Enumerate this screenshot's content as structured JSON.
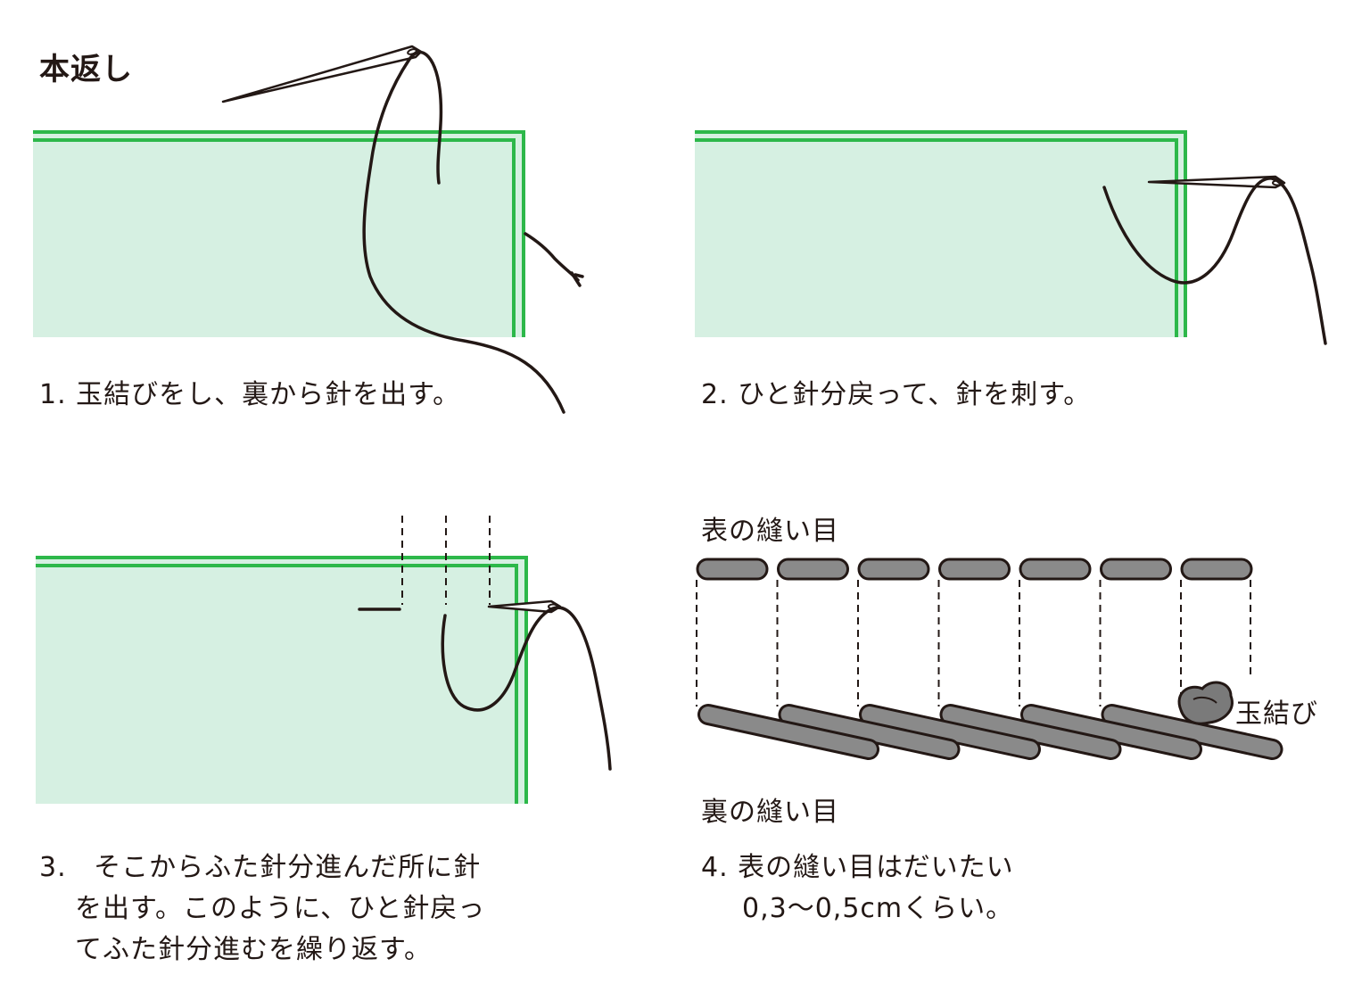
{
  "title": "本返し",
  "steps": [
    {
      "num": "1.",
      "lines": [
        "玉結びをし、裏から針を出す。"
      ]
    },
    {
      "num": "2.",
      "lines": [
        "ひと針分戻って、針を刺す。"
      ]
    },
    {
      "num": "3.",
      "lines": [
        "そこからふた針分進んだ所に針",
        "を出す。このように、ひと針戻っ",
        "てふた針分進むを繰り返す。"
      ]
    },
    {
      "num": "4.",
      "lines": [
        "表の縫い目はだいたい",
        "0,3〜0,5cmくらい。"
      ]
    }
  ],
  "labels": {
    "front_stitches": "表の縫い目",
    "back_stitches": "裏の縫い目",
    "knot": "玉結び"
  },
  "colors": {
    "fabric": "#d6f0e2",
    "edge": "#2db84a",
    "thread": "#231815",
    "stitch": "#8a8a8a"
  }
}
